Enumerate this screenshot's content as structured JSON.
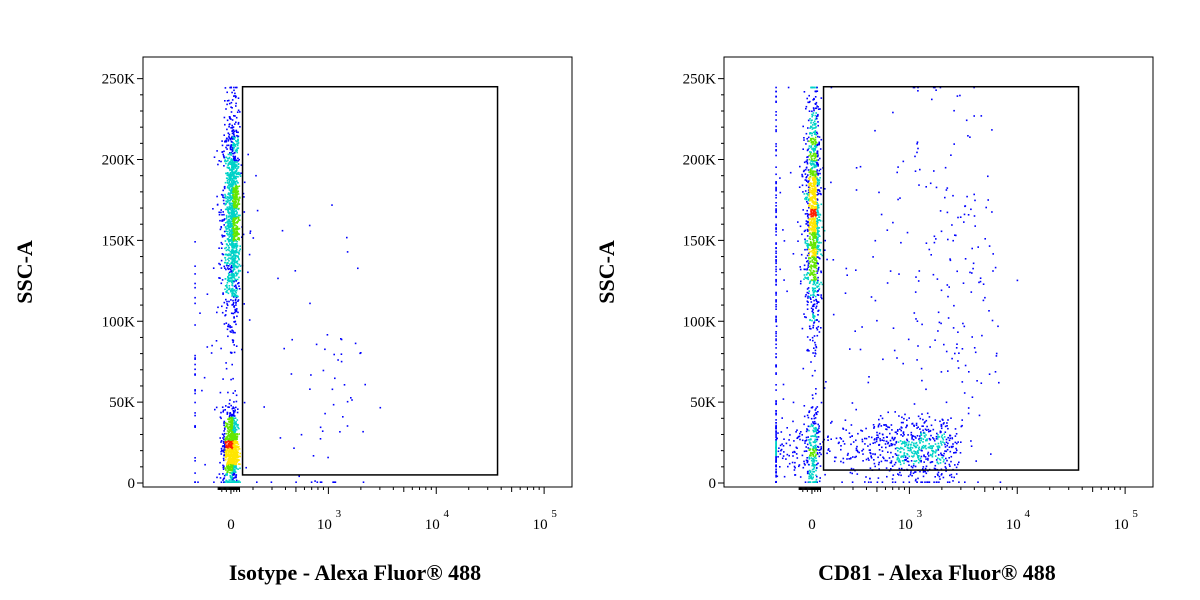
{
  "colors": {
    "background": "#ffffff",
    "axis": "#000000",
    "gate": "#000000",
    "density_low": "#0000ff",
    "density_mid": "#00d2c8",
    "density_midhigh": "#64e600",
    "density_high": "#ffe600",
    "density_peak": "#ff1e00"
  },
  "chart_data": [
    {
      "type": "scatter",
      "style": "pseudocolor density dot plot",
      "xlabel": "Isotype - Alexa Fluor® 488",
      "ylabel": "SSC-A",
      "x_scale": "biexponential",
      "x_ticks": [
        {
          "value": 0,
          "base": "0",
          "exp": ""
        },
        {
          "value": 1000,
          "base": "10",
          "exp": "3"
        },
        {
          "value": 10000,
          "base": "10",
          "exp": "4"
        },
        {
          "value": 100000,
          "base": "10",
          "exp": "5"
        }
      ],
      "y_ticks": [
        {
          "value": 0,
          "label": "0"
        },
        {
          "value": 50000,
          "label": "50K"
        },
        {
          "value": 100000,
          "label": "100K"
        },
        {
          "value": 150000,
          "label": "150K"
        },
        {
          "value": 200000,
          "label": "200K"
        },
        {
          "value": 250000,
          "label": "250K"
        }
      ],
      "ylim": [
        0,
        262144
      ],
      "grid": false,
      "gate": {
        "shape": "rectangle",
        "x_range": [
          160,
          37000
        ],
        "y_range": [
          5000,
          245000
        ]
      },
      "populations": [
        {
          "name_visible": false,
          "x_center": 20,
          "x_spread": 60,
          "y_center": 165000,
          "y_spread": 32000,
          "relative_count": 0.55
        },
        {
          "name_visible": false,
          "x_center": 5,
          "x_spread": 50,
          "y_center": 22000,
          "y_spread": 12000,
          "relative_count": 0.37
        },
        {
          "name_visible": false,
          "x_center": 400,
          "x_spread": 1000,
          "y_center": 60000,
          "y_spread": 50000,
          "relative_count": 0.05
        }
      ]
    },
    {
      "type": "scatter",
      "style": "pseudocolor density dot plot",
      "xlabel": "CD81 - Alexa Fluor® 488",
      "ylabel": "SSC-A",
      "x_scale": "biexponential",
      "x_ticks": [
        {
          "value": 0,
          "base": "0",
          "exp": ""
        },
        {
          "value": 1000,
          "base": "10",
          "exp": "3"
        },
        {
          "value": 10000,
          "base": "10",
          "exp": "4"
        },
        {
          "value": 100000,
          "base": "10",
          "exp": "5"
        }
      ],
      "y_ticks": [
        {
          "value": 0,
          "label": "0"
        },
        {
          "value": 50000,
          "label": "50K"
        },
        {
          "value": 100000,
          "label": "100K"
        },
        {
          "value": 150000,
          "label": "150K"
        },
        {
          "value": 200000,
          "label": "200K"
        },
        {
          "value": 250000,
          "label": "250K"
        }
      ],
      "ylim": [
        0,
        262144
      ],
      "grid": false,
      "gate": {
        "shape": "rectangle",
        "x_range": [
          160,
          37000
        ],
        "y_range": [
          8000,
          245000
        ]
      },
      "populations": [
        {
          "name_visible": false,
          "x_center": 20,
          "x_spread": 55,
          "y_center": 165000,
          "y_spread": 35000,
          "relative_count": 0.45
        },
        {
          "name_visible": false,
          "x_center": 800,
          "x_spread": 900,
          "y_center": 22000,
          "y_spread": 10000,
          "relative_count": 0.33
        },
        {
          "name_visible": false,
          "x_center": 5,
          "x_spread": 40,
          "y_center": 18000,
          "y_spread": 14000,
          "relative_count": 0.07
        },
        {
          "name_visible": false,
          "x_center": 900,
          "x_spread": 2500,
          "y_center": 120000,
          "y_spread": 70000,
          "relative_count": 0.15
        }
      ]
    }
  ]
}
